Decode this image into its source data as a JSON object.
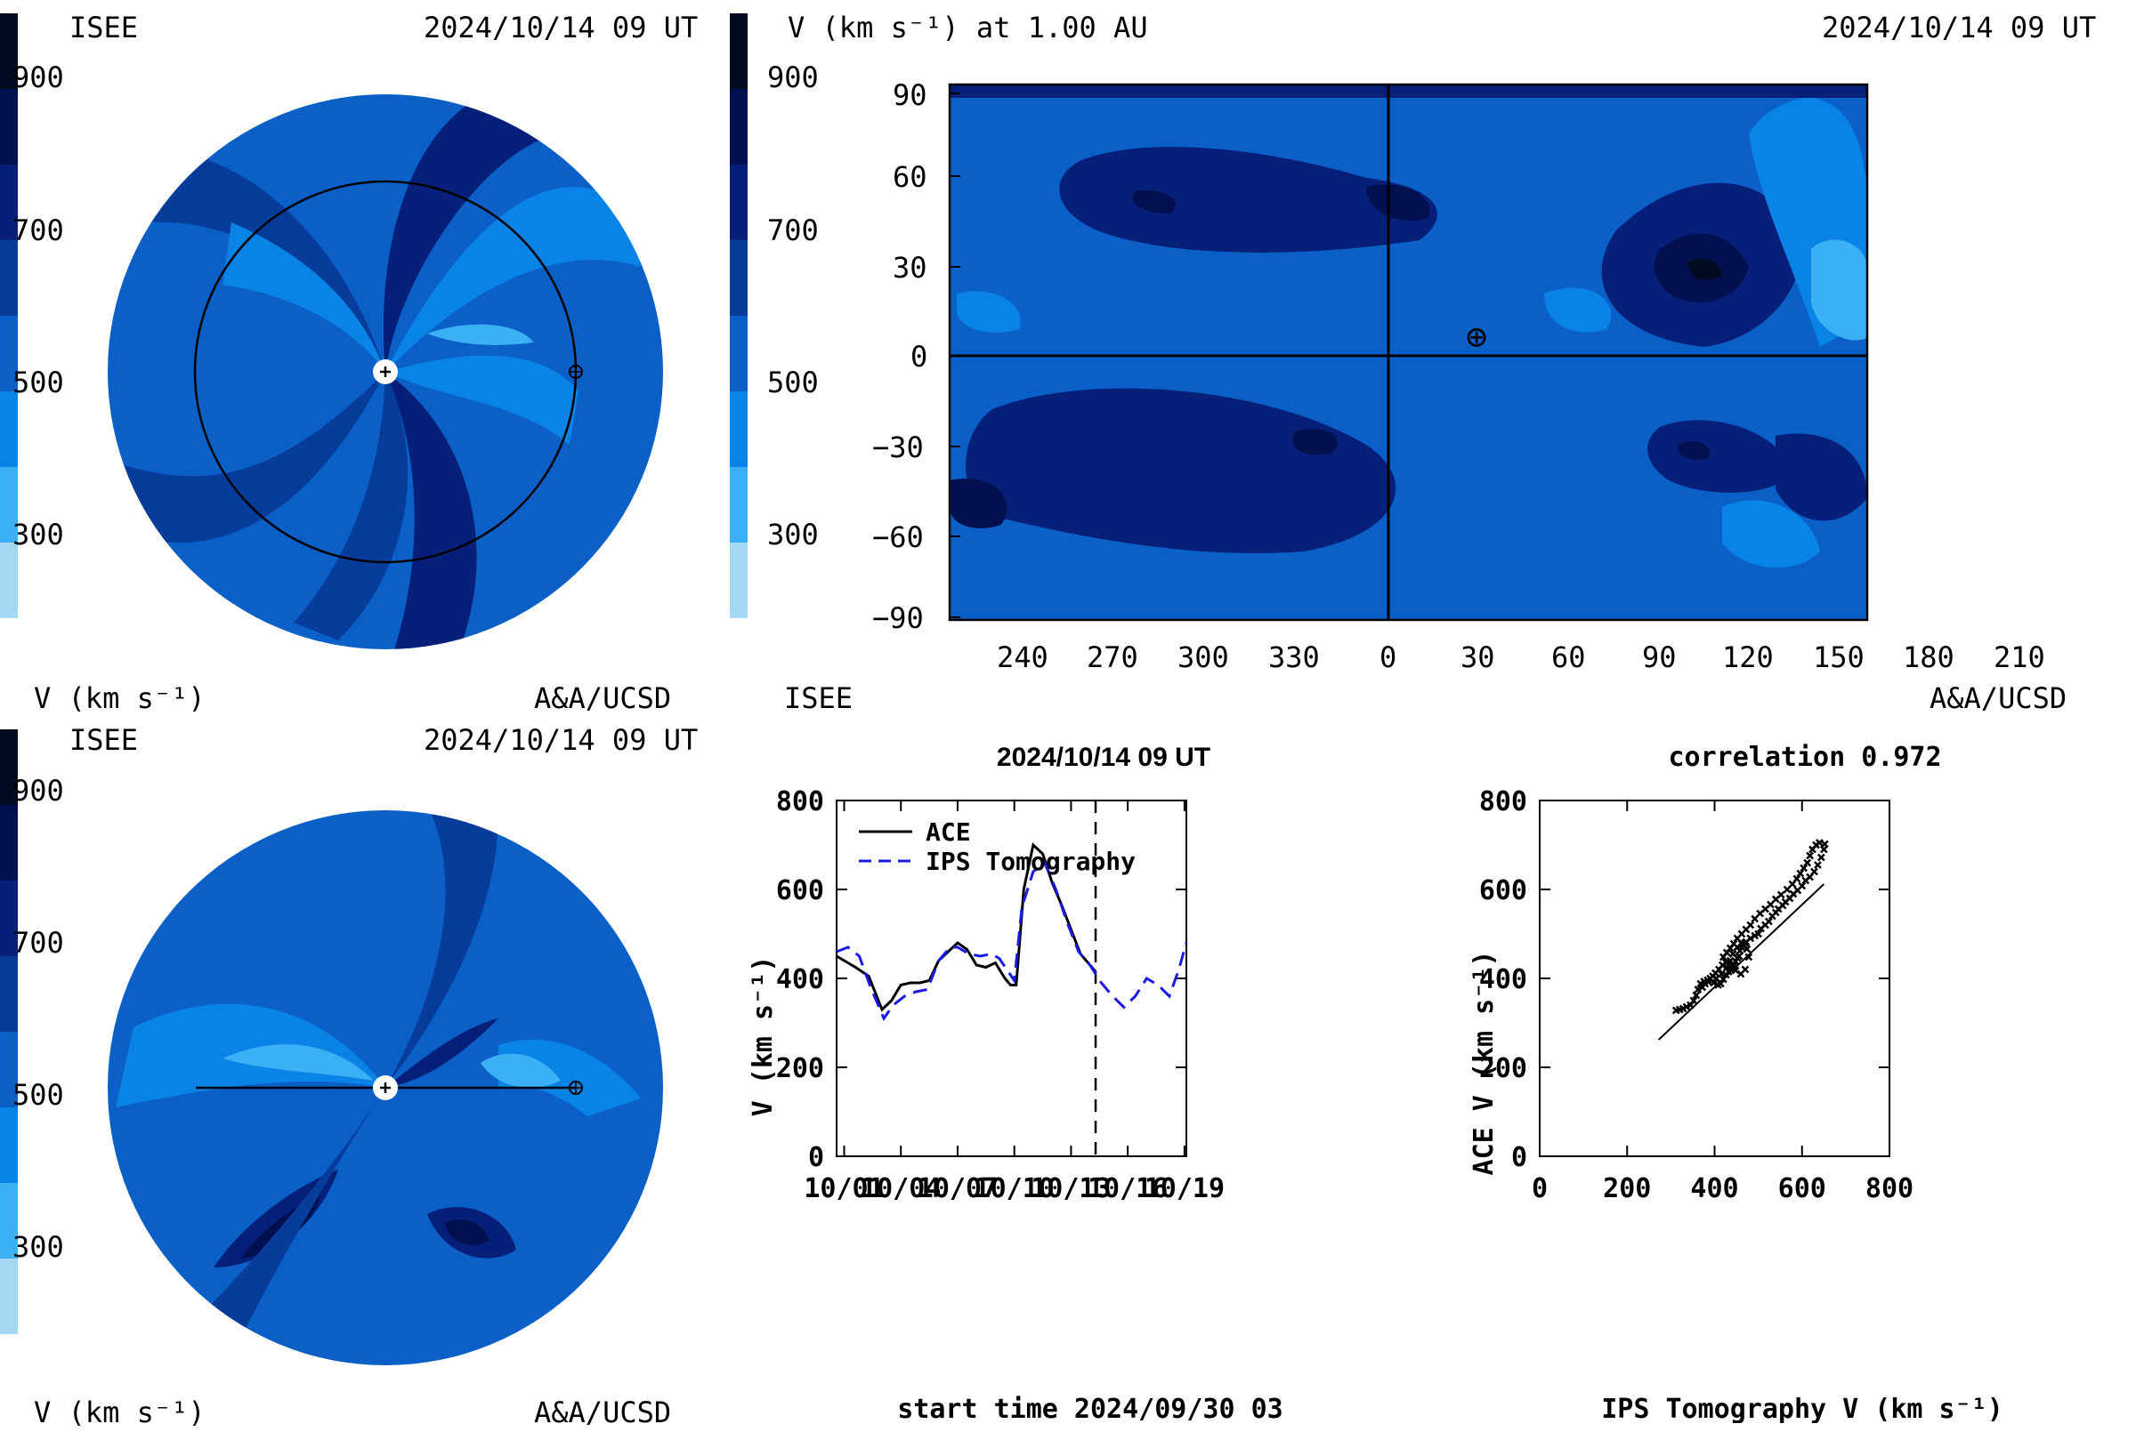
{
  "colors": {
    "scale": [
      "#a5d8f5",
      "#3bb0f5",
      "#0a83e6",
      "#0a60c7",
      "#083c9a",
      "#06207a",
      "#031050",
      "#000b20"
    ],
    "ace_line": "#000000",
    "ips_line": "#1a1ae6"
  },
  "ecliptic_panel": {
    "org": "ISEE",
    "datetime": "2024/10/14 09 UT",
    "unit_label": "V (km s⁻¹)",
    "credit": "A&A/UCSD",
    "colorbar_ticks": [
      "900",
      "700",
      "500",
      "300"
    ]
  },
  "meridional_panel": {
    "org": "ISEE",
    "datetime": "2024/10/14 09 UT",
    "unit_label": "V (km s⁻¹)",
    "credit": "A&A/UCSD",
    "colorbar_ticks": [
      "900",
      "700",
      "500",
      "300"
    ]
  },
  "synoptic_map": {
    "title": "V (km s⁻¹) at 1.00 AU",
    "datetime": "2024/10/14 09 UT",
    "org": "ISEE",
    "credit": "A&A/UCSD",
    "colorbar_ticks": [
      "900",
      "700",
      "500",
      "300"
    ],
    "y_ticks": [
      "90",
      "60",
      "30",
      "0",
      "−30",
      "−60",
      "−90"
    ],
    "x_ticks": [
      "240",
      "270",
      "300",
      "330",
      "0",
      "30",
      "60",
      "90",
      "120",
      "150",
      "180",
      "210"
    ],
    "earth_marker": "⊕"
  },
  "chart_data": [
    {
      "type": "line",
      "title": "2024/10/14 09 UT",
      "xlabel": "start time 2024/09/30 03",
      "ylabel": "V (km s⁻¹)",
      "ylim": [
        0,
        800
      ],
      "xlim": [
        0.6,
        19.1
      ],
      "x_tick_labels": [
        "10/01",
        "10/04",
        "10/07",
        "10/10",
        "10/13",
        "10/16",
        "10/19"
      ],
      "y_tick_labels": [
        "0",
        "200",
        "400",
        "600",
        "800"
      ],
      "now_marker_day": 14.3,
      "legend": "top-left",
      "series": [
        {
          "name": "ACE",
          "x": [
            0.6,
            1.0,
            1.6,
            2.3,
            3.0,
            3.5,
            4.0,
            4.5,
            5.0,
            5.5,
            6.0,
            6.5,
            7.0,
            7.5,
            8.0,
            8.5,
            9.0,
            9.5,
            9.8,
            10.1,
            10.5,
            11.0,
            11.5,
            12.0,
            12.5,
            13.0,
            13.5,
            14.0,
            14.3
          ],
          "y": [
            450,
            440,
            425,
            405,
            330,
            350,
            385,
            390,
            390,
            395,
            440,
            460,
            480,
            465,
            430,
            425,
            435,
            400,
            385,
            385,
            600,
            700,
            680,
            615,
            565,
            510,
            455,
            430,
            415
          ]
        },
        {
          "name": "IPS Tomography",
          "x": [
            0.6,
            1.2,
            1.8,
            2.4,
            3.1,
            3.6,
            4.2,
            4.8,
            5.4,
            6.0,
            6.6,
            7.0,
            7.6,
            8.2,
            8.8,
            9.2,
            9.6,
            10.0,
            10.4,
            11.0,
            11.6,
            12.2,
            12.8,
            13.4,
            14.0,
            14.6,
            15.2,
            15.8,
            16.4,
            17.0,
            17.6,
            18.2,
            18.7,
            19.1
          ],
          "y": [
            460,
            470,
            450,
            380,
            310,
            340,
            360,
            370,
            375,
            440,
            470,
            470,
            455,
            450,
            455,
            445,
            420,
            395,
            560,
            640,
            660,
            600,
            525,
            460,
            430,
            390,
            360,
            335,
            360,
            400,
            385,
            360,
            420,
            480
          ]
        }
      ]
    },
    {
      "type": "scatter",
      "title": "correlation 0.972",
      "xlabel": "IPS Tomography V (km s⁻¹)",
      "ylabel": "ACE V (km s⁻¹)",
      "xlim": [
        0,
        800
      ],
      "ylim": [
        0,
        800
      ],
      "x_tick_labels": [
        "0",
        "200",
        "400",
        "600",
        "800"
      ],
      "y_tick_labels": [
        "0",
        "200",
        "400",
        "600",
        "800"
      ],
      "fit_line": {
        "x": [
          272,
          650
        ],
        "y": [
          262,
          612
        ]
      },
      "points": [
        [
          312,
          328
        ],
        [
          320,
          330
        ],
        [
          328,
          332
        ],
        [
          336,
          336
        ],
        [
          345,
          340
        ],
        [
          352,
          350
        ],
        [
          358,
          362
        ],
        [
          362,
          375
        ],
        [
          368,
          388
        ],
        [
          376,
          393
        ],
        [
          386,
          392
        ],
        [
          398,
          390
        ],
        [
          408,
          385
        ],
        [
          414,
          388
        ],
        [
          420,
          398
        ],
        [
          426,
          408
        ],
        [
          432,
          415
        ],
        [
          438,
          420
        ],
        [
          444,
          428
        ],
        [
          448,
          438
        ],
        [
          452,
          446
        ],
        [
          456,
          450
        ],
        [
          458,
          462
        ],
        [
          462,
          470
        ],
        [
          466,
          476
        ],
        [
          470,
          480
        ],
        [
          474,
          466
        ],
        [
          478,
          448
        ],
        [
          470,
          420
        ],
        [
          460,
          410
        ],
        [
          448,
          418
        ],
        [
          440,
          425
        ],
        [
          432,
          430
        ],
        [
          426,
          436
        ],
        [
          418,
          430
        ],
        [
          410,
          420
        ],
        [
          402,
          412
        ],
        [
          396,
          405
        ],
        [
          390,
          400
        ],
        [
          384,
          396
        ],
        [
          378,
          388
        ],
        [
          372,
          380
        ],
        [
          404,
          400
        ],
        [
          416,
          410
        ],
        [
          428,
          425
        ],
        [
          436,
          440
        ],
        [
          442,
          455
        ],
        [
          452,
          470
        ],
        [
          462,
          478
        ],
        [
          472,
          482
        ],
        [
          482,
          490
        ],
        [
          492,
          496
        ],
        [
          500,
          500
        ],
        [
          506,
          512
        ],
        [
          516,
          520
        ],
        [
          524,
          528
        ],
        [
          532,
          540
        ],
        [
          540,
          548
        ],
        [
          546,
          556
        ],
        [
          556,
          564
        ],
        [
          562,
          572
        ],
        [
          572,
          580
        ],
        [
          580,
          590
        ],
        [
          590,
          598
        ],
        [
          600,
          608
        ],
        [
          608,
          620
        ],
        [
          618,
          628
        ],
        [
          628,
          640
        ],
        [
          636,
          655
        ],
        [
          644,
          672
        ],
        [
          650,
          690
        ],
        [
          652,
          702
        ],
        [
          640,
          705
        ],
        [
          632,
          700
        ],
        [
          624,
          690
        ],
        [
          618,
          676
        ],
        [
          612,
          660
        ],
        [
          604,
          648
        ],
        [
          596,
          636
        ],
        [
          588,
          624
        ],
        [
          578,
          612
        ],
        [
          566,
          600
        ],
        [
          552,
          588
        ],
        [
          540,
          578
        ],
        [
          528,
          566
        ],
        [
          516,
          556
        ],
        [
          504,
          546
        ],
        [
          492,
          534
        ],
        [
          482,
          520
        ],
        [
          472,
          510
        ],
        [
          462,
          500
        ],
        [
          452,
          490
        ],
        [
          444,
          478
        ],
        [
          436,
          468
        ],
        [
          428,
          458
        ],
        [
          420,
          448
        ]
      ]
    }
  ]
}
